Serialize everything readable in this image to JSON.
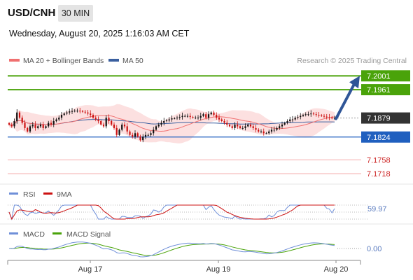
{
  "header": {
    "symbol": "USD/CNH",
    "timeframe": "30 MIN",
    "datetime": "Wednesday, August 20, 2025 1:16:03 AM CET"
  },
  "legend": {
    "ma20_label": "MA 20 + Bollinger Bands",
    "ma50_label": "MA 50",
    "credit": "Research © 2025 Trading Central"
  },
  "colors": {
    "candle_up": "#111111",
    "candle_down": "#cc1111",
    "ma20": "#f07070",
    "ma50": "#3a5f9f",
    "bollinger_fill": "#fbd3d3",
    "target_line": "#4aa30a",
    "pivot_line": "#1f5fbf",
    "support_line": "#f4a8a8",
    "arrow": "#2f5597",
    "rsi": "#6f8fd8",
    "rsi_ma": "#cc1111",
    "macd": "#6f8fd8",
    "macd_signal": "#4aa30a"
  },
  "chart_data": [
    {
      "type": "candlestick",
      "name": "price",
      "ylim": [
        7.17,
        7.203
      ],
      "levels": [
        {
          "value": 7.2001,
          "label": "7.2001",
          "kind": "target"
        },
        {
          "value": 7.1961,
          "label": "7.1961",
          "kind": "target"
        },
        {
          "value": 7.1879,
          "label": "7.1879",
          "kind": "last"
        },
        {
          "value": 7.1824,
          "label": "7.1824",
          "kind": "pivot"
        },
        {
          "value": 7.1758,
          "label": "7.1758",
          "kind": "support"
        },
        {
          "value": 7.1718,
          "label": "7.1718",
          "kind": "support"
        }
      ],
      "closes": [
        7.186,
        7.1855,
        7.187,
        7.1895,
        7.188,
        7.1865,
        7.185,
        7.184,
        7.1855,
        7.186,
        7.185,
        7.1855,
        7.186,
        7.185,
        7.1855,
        7.1865,
        7.186,
        7.187,
        7.1875,
        7.188,
        7.1888,
        7.1892,
        7.1895,
        7.1898,
        7.1899,
        7.19,
        7.19,
        7.1899,
        7.1897,
        7.1895,
        7.1892,
        7.1888,
        7.188,
        7.1875,
        7.187,
        7.186,
        7.1855,
        7.188,
        7.187,
        7.186,
        7.185,
        7.183,
        7.1845,
        7.186,
        7.1855,
        7.184,
        7.183,
        7.1825,
        7.1835,
        7.1825,
        7.1815,
        7.1825,
        7.183,
        7.183,
        7.1835,
        7.1845,
        7.1855,
        7.186,
        7.1865,
        7.187,
        7.1872,
        7.1875,
        7.1878,
        7.1878,
        7.188,
        7.1882,
        7.1885,
        7.1885,
        7.1885,
        7.1882,
        7.188,
        7.188,
        7.188,
        7.1885,
        7.189,
        7.188,
        7.189,
        7.1895,
        7.1888,
        7.188,
        7.1875,
        7.187,
        7.1865,
        7.186,
        7.1855,
        7.185,
        7.186,
        7.1855,
        7.185,
        7.185,
        7.1855,
        7.186,
        7.1855,
        7.185,
        7.1845,
        7.184,
        7.184,
        7.1835,
        7.1835,
        7.184,
        7.1845,
        7.1845,
        7.185,
        7.1855,
        7.186,
        7.1865,
        7.187,
        7.1875,
        7.1875,
        7.188,
        7.1882,
        7.1885,
        7.1888,
        7.189,
        7.189,
        7.1892,
        7.189,
        7.1888,
        7.1887,
        7.1885,
        7.1883,
        7.1881,
        7.188,
        7.1879,
        7.1879
      ],
      "projection_target": 7.2001
    },
    {
      "type": "line",
      "name": "rsi",
      "series": [
        {
          "name": "RSI",
          "last": 59.97
        },
        {
          "name": "9MA"
        }
      ],
      "levels": [
        70,
        50,
        30
      ],
      "last_label": "59.97"
    },
    {
      "type": "line",
      "name": "macd",
      "series": [
        {
          "name": "MACD"
        },
        {
          "name": "MACD Signal"
        }
      ],
      "last_label": "0.00"
    }
  ],
  "x_axis": {
    "ticks": [
      "Aug 17",
      "Aug 19",
      "Aug 20"
    ]
  }
}
